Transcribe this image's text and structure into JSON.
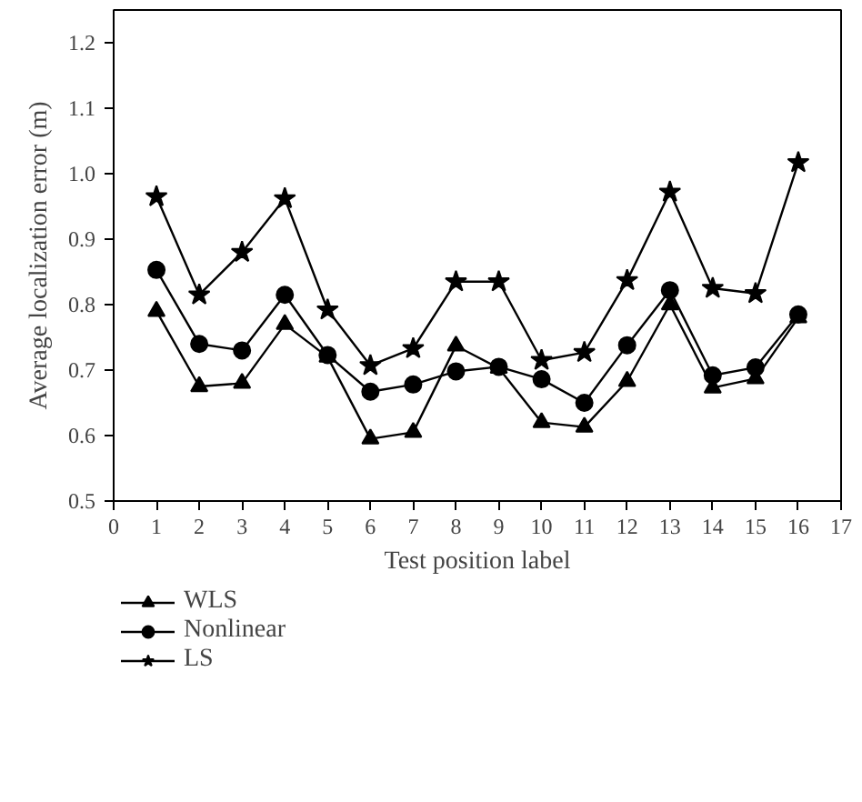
{
  "chart_data": {
    "type": "line",
    "xlabel": "Test position label",
    "ylabel": "Average localization error (m)",
    "x": [
      1,
      2,
      3,
      4,
      5,
      6,
      7,
      8,
      9,
      10,
      11,
      12,
      13,
      14,
      15,
      16
    ],
    "xlim": [
      0,
      17
    ],
    "xticks": [
      0,
      1,
      2,
      3,
      4,
      5,
      6,
      7,
      8,
      9,
      10,
      11,
      12,
      13,
      14,
      15,
      16,
      17
    ],
    "ylim": [
      0.5,
      1.25
    ],
    "yticks": [
      0.5,
      0.6,
      0.7,
      0.8,
      0.9,
      {
        "value": 1,
        "label": "1.0"
      },
      1.1,
      1.2
    ],
    "grid": false,
    "legend": "bottom left",
    "line_style": "solid",
    "series": [
      {
        "name": "WLS",
        "color": "#000000",
        "marker": "triangle",
        "values": [
          0.79,
          0.675,
          0.68,
          0.77,
          0.72,
          0.595,
          0.605,
          0.737,
          0.703,
          0.62,
          0.613,
          0.683,
          0.8,
          0.673,
          0.687,
          0.78
        ]
      },
      {
        "name": "Nonlinear",
        "color": "#000000",
        "marker": "circle",
        "values": [
          0.853,
          0.74,
          0.73,
          0.815,
          0.723,
          0.667,
          0.678,
          0.698,
          0.705,
          0.686,
          0.65,
          0.738,
          0.822,
          0.692,
          0.704,
          0.785
        ]
      },
      {
        "name": "LS",
        "color": "#000000",
        "marker": "star",
        "values": [
          0.965,
          0.815,
          0.88,
          0.962,
          0.792,
          0.707,
          0.733,
          0.835,
          0.835,
          0.715,
          0.727,
          0.837,
          0.972,
          0.825,
          0.817,
          1.017
        ]
      }
    ]
  }
}
